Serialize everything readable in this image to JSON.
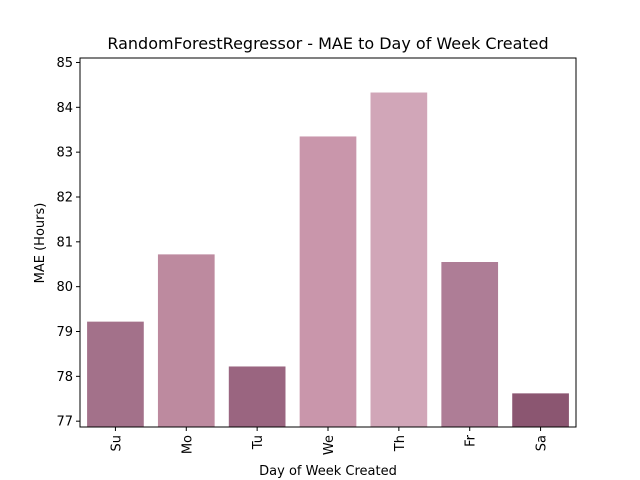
{
  "chart_data": {
    "type": "bar",
    "title": "RandomForestRegressor - MAE to Day of Week Created",
    "xlabel": "Day of Week Created",
    "ylabel": "MAE (Hours)",
    "categories": [
      "Su",
      "Mo",
      "Tu",
      "We",
      "Th",
      "Fr",
      "Sa"
    ],
    "values": [
      79.22,
      80.72,
      78.22,
      83.35,
      84.33,
      80.55,
      77.62
    ],
    "colors": [
      "#a3718a",
      "#bd8a9f",
      "#9a6580",
      "#c996ab",
      "#d1a6b8",
      "#ae7d96",
      "#8b5671"
    ],
    "ylim": [
      76.87,
      85.1
    ],
    "yticks": [
      77,
      78,
      79,
      80,
      81,
      82,
      83,
      84,
      85
    ],
    "grid": false,
    "legend": "none"
  }
}
